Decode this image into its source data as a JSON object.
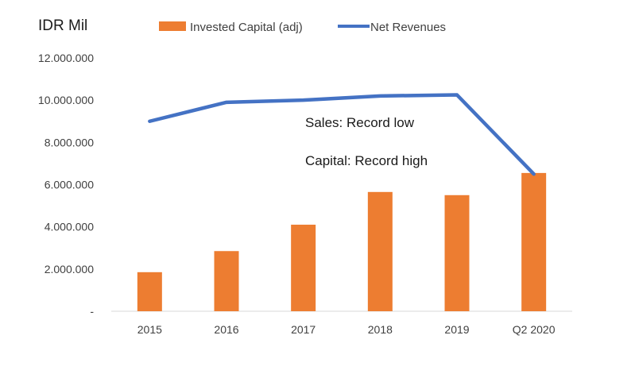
{
  "chart_data": {
    "type": "bar+line",
    "unit_label": "IDR Mil",
    "categories": [
      "2015",
      "2016",
      "2017",
      "2018",
      "2019",
      "Q2 2020"
    ],
    "y_ticks": [
      {
        "value": 0,
        "label": "-"
      },
      {
        "value": 2000000,
        "label": "2.000.000"
      },
      {
        "value": 4000000,
        "label": "4.000.000"
      },
      {
        "value": 6000000,
        "label": "6.000.000"
      },
      {
        "value": 8000000,
        "label": "8.000.000"
      },
      {
        "value": 10000000,
        "label": "10.000.000"
      },
      {
        "value": 12000000,
        "label": "12.000.000"
      }
    ],
    "ylim": [
      0,
      12000000
    ],
    "grid": false,
    "legend_position": "top",
    "series": [
      {
        "name": "Invested Capital (adj)",
        "kind": "bar",
        "color": "#ED7D31",
        "values": [
          1850000,
          2850000,
          4100000,
          5650000,
          5500000,
          6550000
        ]
      },
      {
        "name": "Net Revenues",
        "kind": "line",
        "color": "#4472C4",
        "values": [
          9000000,
          9900000,
          10000000,
          10200000,
          10250000,
          6500000
        ]
      }
    ],
    "annotations": [
      "Sales: Record low",
      "Capital: Record high"
    ]
  }
}
